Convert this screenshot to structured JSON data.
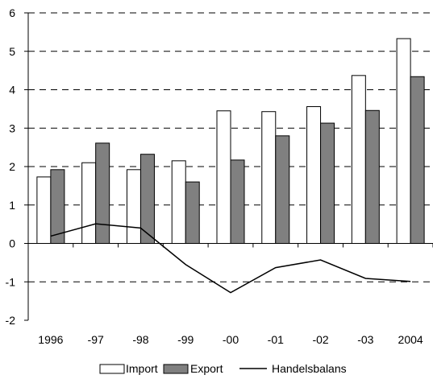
{
  "chart_data": {
    "type": "bar",
    "categories": [
      "1996",
      "-97",
      "-98",
      "-99",
      "-00",
      "-01",
      "-02",
      "-03",
      "2004"
    ],
    "series": [
      {
        "name": "Import",
        "type": "bar",
        "color": "#ffffff",
        "values": [
          1.73,
          2.1,
          1.92,
          2.15,
          3.45,
          3.43,
          3.56,
          4.37,
          5.33
        ]
      },
      {
        "name": "Export",
        "type": "bar",
        "color": "#808080",
        "values": [
          1.92,
          2.61,
          2.32,
          1.6,
          2.17,
          2.8,
          3.13,
          3.46,
          4.34
        ]
      },
      {
        "name": "Handelsbalans",
        "type": "line",
        "color": "#000000",
        "values": [
          0.19,
          0.51,
          0.4,
          -0.55,
          -1.28,
          -0.63,
          -0.43,
          -0.91,
          -0.99
        ]
      }
    ],
    "ylim": [
      -2,
      6
    ],
    "yticks": [
      -2,
      -1,
      0,
      1,
      2,
      3,
      4,
      5,
      6
    ],
    "grid": "dashed horizontal",
    "legend": "bottom",
    "title": "",
    "xlabel": "",
    "ylabel": ""
  }
}
